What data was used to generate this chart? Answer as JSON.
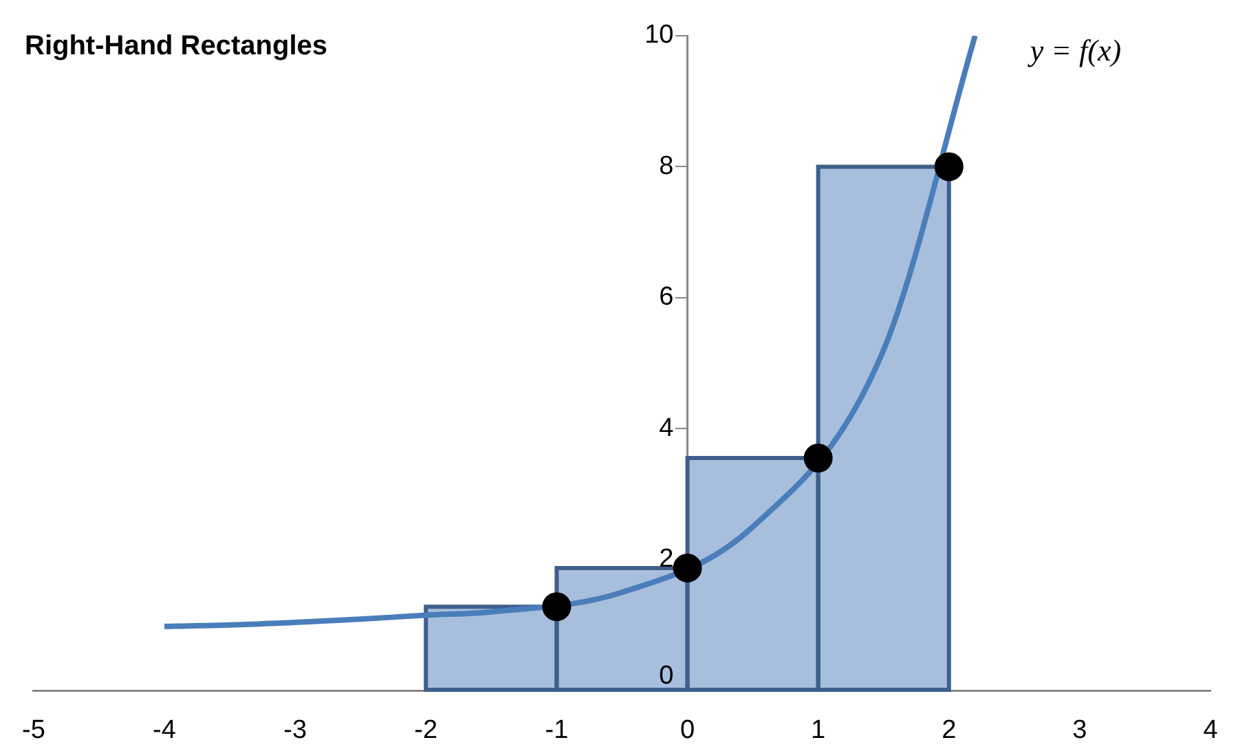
{
  "chart_data": {
    "type": "histogram",
    "title": "Right-Hand Rectangles",
    "bins": [
      -2,
      -1,
      0,
      1,
      2
    ],
    "values": [
      1.28,
      1.87,
      3.55,
      8
    ],
    "color": "#a7bfdd",
    "series": [
      {
        "type": "line",
        "name": "y = f(x)",
        "color": "#4a7ebb",
        "x": [
          -4,
          -3.5,
          -3,
          -2.5,
          -2,
          -1.5,
          -0.5,
          0.5,
          1.5,
          2.2
        ],
        "values": [
          0.98,
          1.0,
          1.04,
          1.09,
          1.15,
          1.2,
          1.5,
          2.5,
          5.2,
          10
        ]
      },
      {
        "type": "scatter",
        "color": "#000000",
        "marker": "circle",
        "x": [
          -1,
          0,
          1,
          2
        ],
        "values": [
          1.28,
          1.87,
          3.55,
          8
        ]
      }
    ],
    "xlim": [
      -5,
      4
    ],
    "xticks": [
      -5,
      -4,
      -3,
      -2,
      -1,
      0,
      1,
      2,
      3,
      4
    ],
    "ylim": [
      0,
      10
    ],
    "yticks": [
      0,
      2,
      4,
      6,
      8,
      10
    ],
    "grid": false,
    "legend": false
  }
}
